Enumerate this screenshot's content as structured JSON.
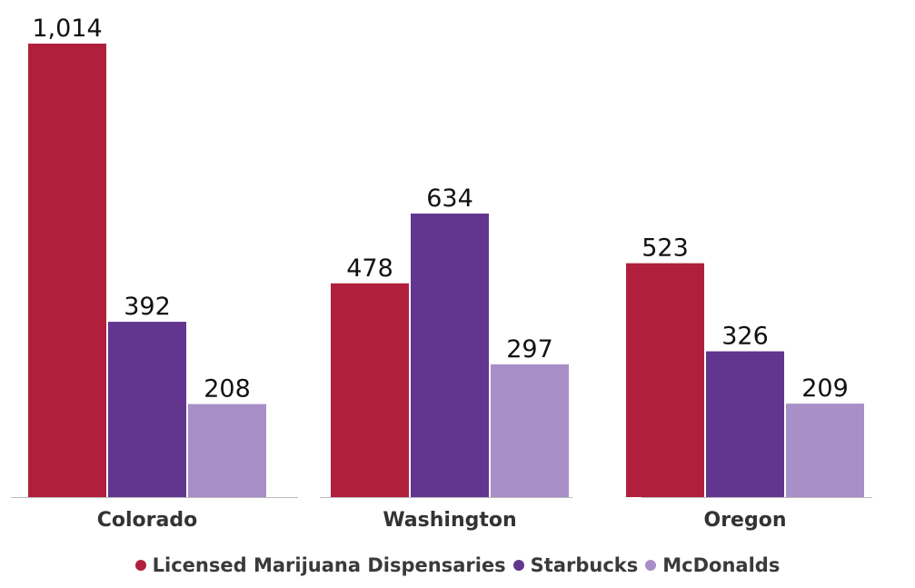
{
  "chart_data": {
    "type": "bar",
    "categories": [
      "Colorado",
      "Washington",
      "Oregon"
    ],
    "series": [
      {
        "name": "Licensed Marijuana Dispensaries",
        "values": [
          1014,
          478,
          523
        ],
        "labels": [
          "1,014",
          "478",
          "523"
        ],
        "color": "#b0203c"
      },
      {
        "name": "Starbucks",
        "values": [
          392,
          634,
          326
        ],
        "labels": [
          "392",
          "634",
          "326"
        ],
        "color": "#62358f"
      },
      {
        "name": "McDonalds",
        "values": [
          208,
          297,
          209
        ],
        "labels": [
          "208",
          "297",
          "209"
        ],
        "color": "#a88fc7"
      }
    ],
    "title": "",
    "xlabel": "",
    "ylabel": "",
    "ylim": [
      0,
      1014
    ],
    "grid": false,
    "legend_position": "bottom"
  }
}
